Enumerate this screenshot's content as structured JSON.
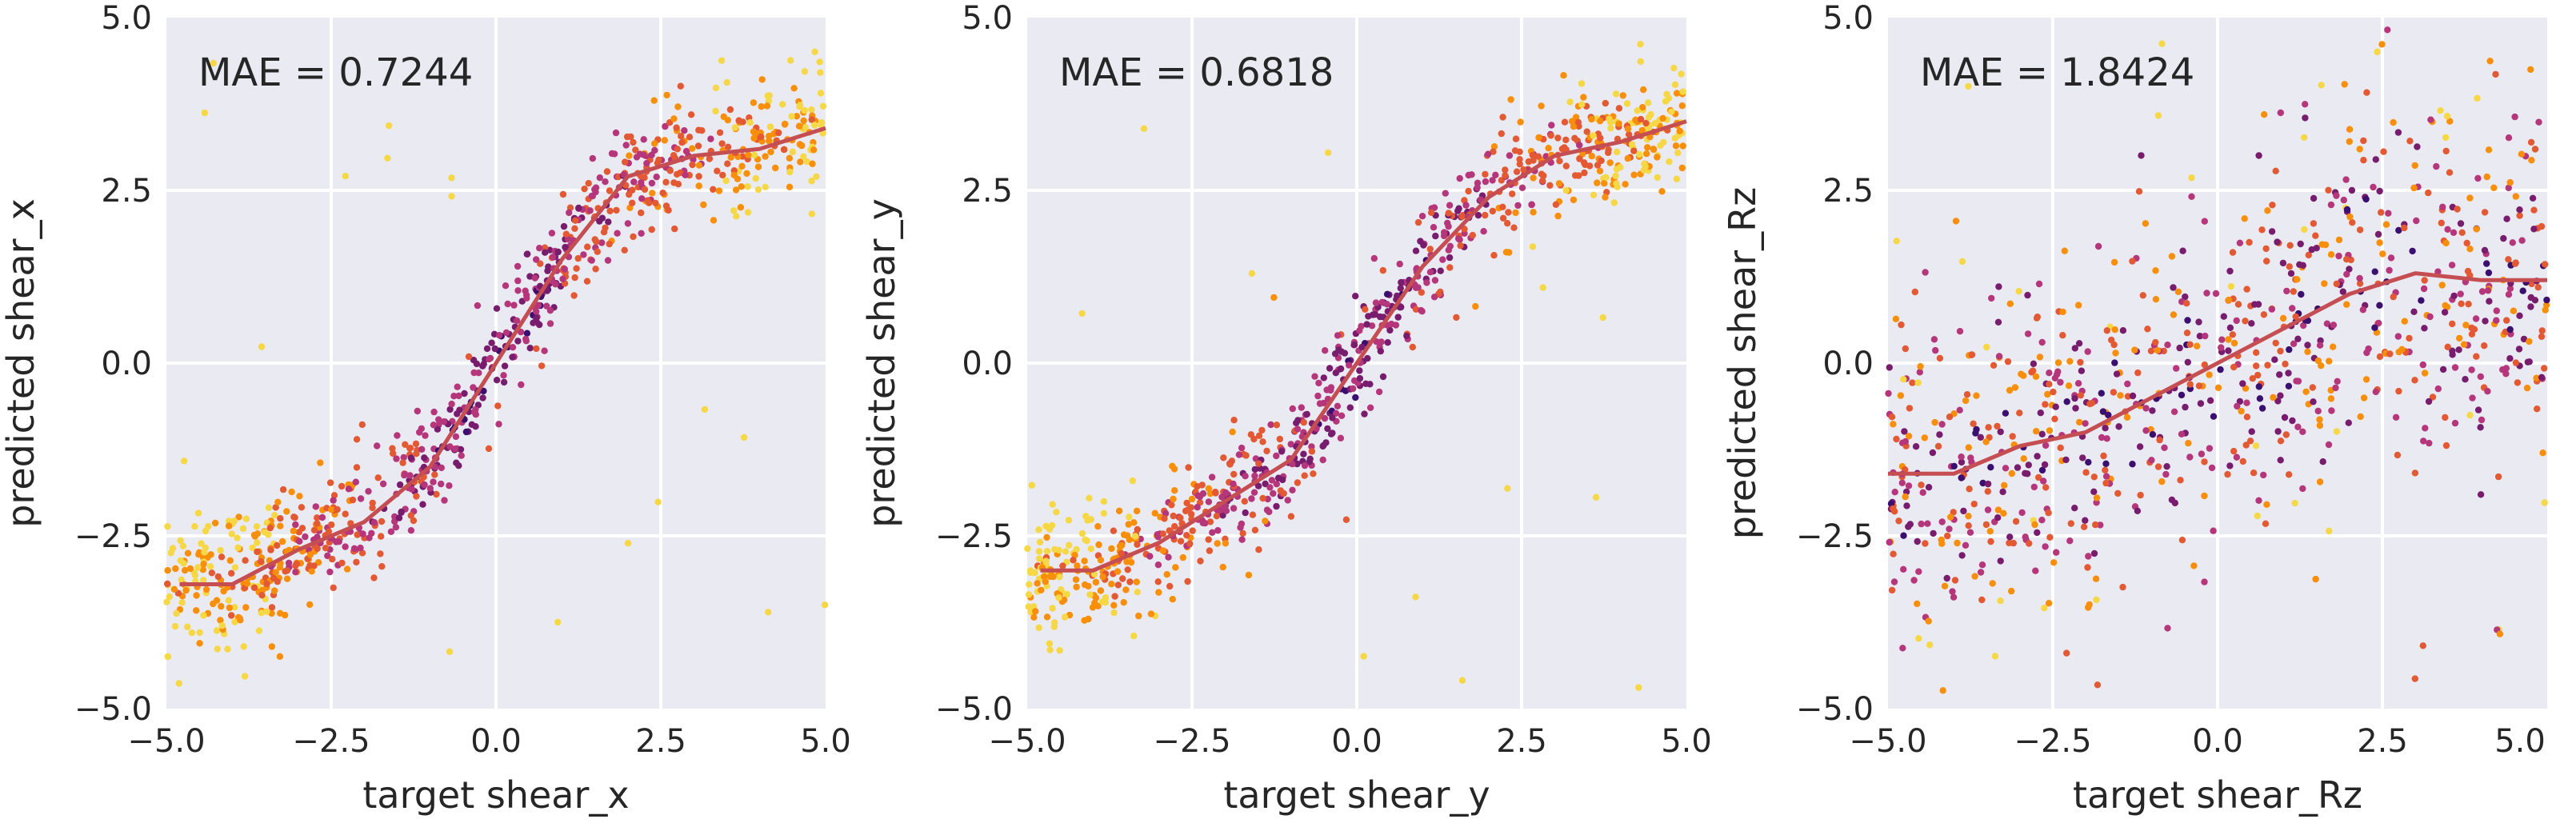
{
  "chart_data": [
    {
      "type": "scatter",
      "annotation": "MAE = 0.7244",
      "xlabel": "target shear_x",
      "ylabel": "predicted shear_x",
      "xlim": [
        -5.0,
        5.0
      ],
      "ylim": [
        -5.0,
        5.0
      ],
      "xticks": [
        "−5.0",
        "−2.5",
        "0.0",
        "2.5",
        "5.0"
      ],
      "yticks": [
        "−5.0",
        "−2.5",
        "0.0",
        "2.5",
        "5.0"
      ],
      "grid": true,
      "background": "#eaeaf2",
      "trend_line": {
        "color": "#c44e52",
        "x": [
          -4.8,
          -4.0,
          -3.0,
          -2.0,
          -1.0,
          0.0,
          1.0,
          2.0,
          3.0,
          4.0,
          5.0
        ],
        "y": [
          -3.2,
          -3.2,
          -2.7,
          -2.3,
          -1.5,
          0.0,
          1.5,
          2.7,
          3.0,
          3.1,
          3.4
        ]
      },
      "scatter_cloud": {
        "shape": "sigmoid",
        "trend_reference": "trend_line",
        "seed": 11,
        "count": 900,
        "noise_abs_x_near_zero": 0.4,
        "noise_abs_x_far": 0.45,
        "outliers": 0.02,
        "colormap": "inferno",
        "colormap_stops": [
          "#0b0724",
          "#3b0f6f",
          "#781c6d",
          "#b5367a",
          "#e35933",
          "#f98e09",
          "#f6d746"
        ]
      }
    },
    {
      "type": "scatter",
      "annotation": "MAE = 0.6818",
      "xlabel": "target shear_y",
      "ylabel": "predicted shear_y",
      "xlim": [
        -5.0,
        5.0
      ],
      "ylim": [
        -5.0,
        5.0
      ],
      "xticks": [
        "−5.0",
        "−2.5",
        "0.0",
        "2.5",
        "5.0"
      ],
      "yticks": [
        "−5.0",
        "−2.5",
        "0.0",
        "2.5",
        "5.0"
      ],
      "grid": true,
      "background": "#eaeaf2",
      "trend_line": {
        "color": "#c44e52",
        "x": [
          -4.8,
          -4.0,
          -3.0,
          -2.0,
          -1.0,
          0.0,
          1.0,
          2.0,
          3.0,
          4.0,
          5.0
        ],
        "y": [
          -3.0,
          -3.0,
          -2.6,
          -2.0,
          -1.4,
          0.0,
          1.4,
          2.4,
          3.0,
          3.2,
          3.5
        ]
      },
      "scatter_cloud": {
        "shape": "sigmoid",
        "trend_reference": "trend_line",
        "seed": 23,
        "count": 900,
        "noise_abs_x_near_zero": 0.4,
        "noise_abs_x_far": 0.45,
        "outliers": 0.02,
        "colormap": "inferno",
        "colormap_stops": [
          "#0b0724",
          "#3b0f6f",
          "#781c6d",
          "#b5367a",
          "#e35933",
          "#f98e09",
          "#f6d746"
        ]
      }
    },
    {
      "type": "scatter",
      "annotation": "MAE = 1.8424",
      "xlabel": "target shear_Rz",
      "ylabel": "predicted shear_Rz",
      "xlim": [
        -5.0,
        5.0
      ],
      "ylim": [
        -5.0,
        5.0
      ],
      "xticks": [
        "−5.0",
        "−2.5",
        "0.0",
        "2.5",
        "5.0"
      ],
      "yticks": [
        "−5.0",
        "−2.5",
        "0.0",
        "2.5",
        "5.0"
      ],
      "grid": true,
      "background": "#eaeaf2",
      "trend_line": {
        "color": "#c44e52",
        "x": [
          -5.0,
          -4.0,
          -3.0,
          -2.0,
          -1.0,
          0.0,
          1.0,
          2.0,
          3.0,
          4.0,
          5.0
        ],
        "y": [
          -1.6,
          -1.6,
          -1.2,
          -1.0,
          -0.5,
          0.0,
          0.5,
          1.0,
          1.3,
          1.2,
          1.2
        ]
      },
      "scatter_cloud": {
        "shape": "wide",
        "trend_reference": "trend_line",
        "seed": 37,
        "count": 900,
        "noise": 1.3,
        "outliers": 0.03,
        "colormap": "inferno",
        "colormap_stops": [
          "#0b0724",
          "#3b0f6f",
          "#781c6d",
          "#b5367a",
          "#e35933",
          "#f98e09",
          "#f6d746"
        ]
      }
    }
  ]
}
